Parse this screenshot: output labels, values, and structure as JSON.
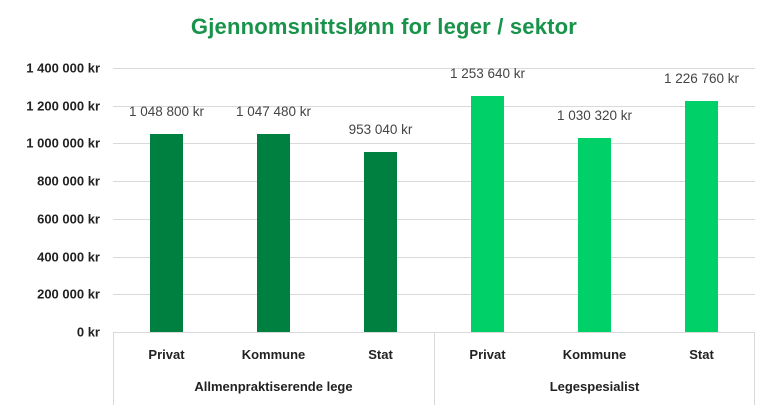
{
  "chart_data": {
    "type": "bar",
    "title": "Gjennomsnittslønn for leger / sektor",
    "xlabel": "",
    "ylabel": "",
    "ylim": [
      0,
      1400000
    ],
    "yticks": [
      "0 kr",
      "200 000 kr",
      "400 000 kr",
      "600 000 kr",
      "800 000 kr",
      "1 000 000 kr",
      "1 200 000 kr",
      "1 400 000 kr"
    ],
    "grid": true,
    "legend": "none",
    "groups": [
      {
        "name": "Allmenpraktiserende lege",
        "color": "#008040",
        "categories": [
          "Privat",
          "Kommune",
          "Stat"
        ],
        "values": [
          1048800,
          1047480,
          953040
        ],
        "labels": [
          "1 048 800 kr",
          "1 047 480 kr",
          "953 040 kr"
        ]
      },
      {
        "name": "Legespesialist",
        "color": "#00d068",
        "categories": [
          "Privat",
          "Kommune",
          "Stat"
        ],
        "values": [
          1253640,
          1030320,
          1226760
        ],
        "labels": [
          "1 253 640 kr",
          "1 030 320 kr",
          "1 226 760 kr"
        ]
      }
    ]
  },
  "colors": {
    "title": "#17934a",
    "group1": "#008040",
    "group2": "#00d068"
  }
}
